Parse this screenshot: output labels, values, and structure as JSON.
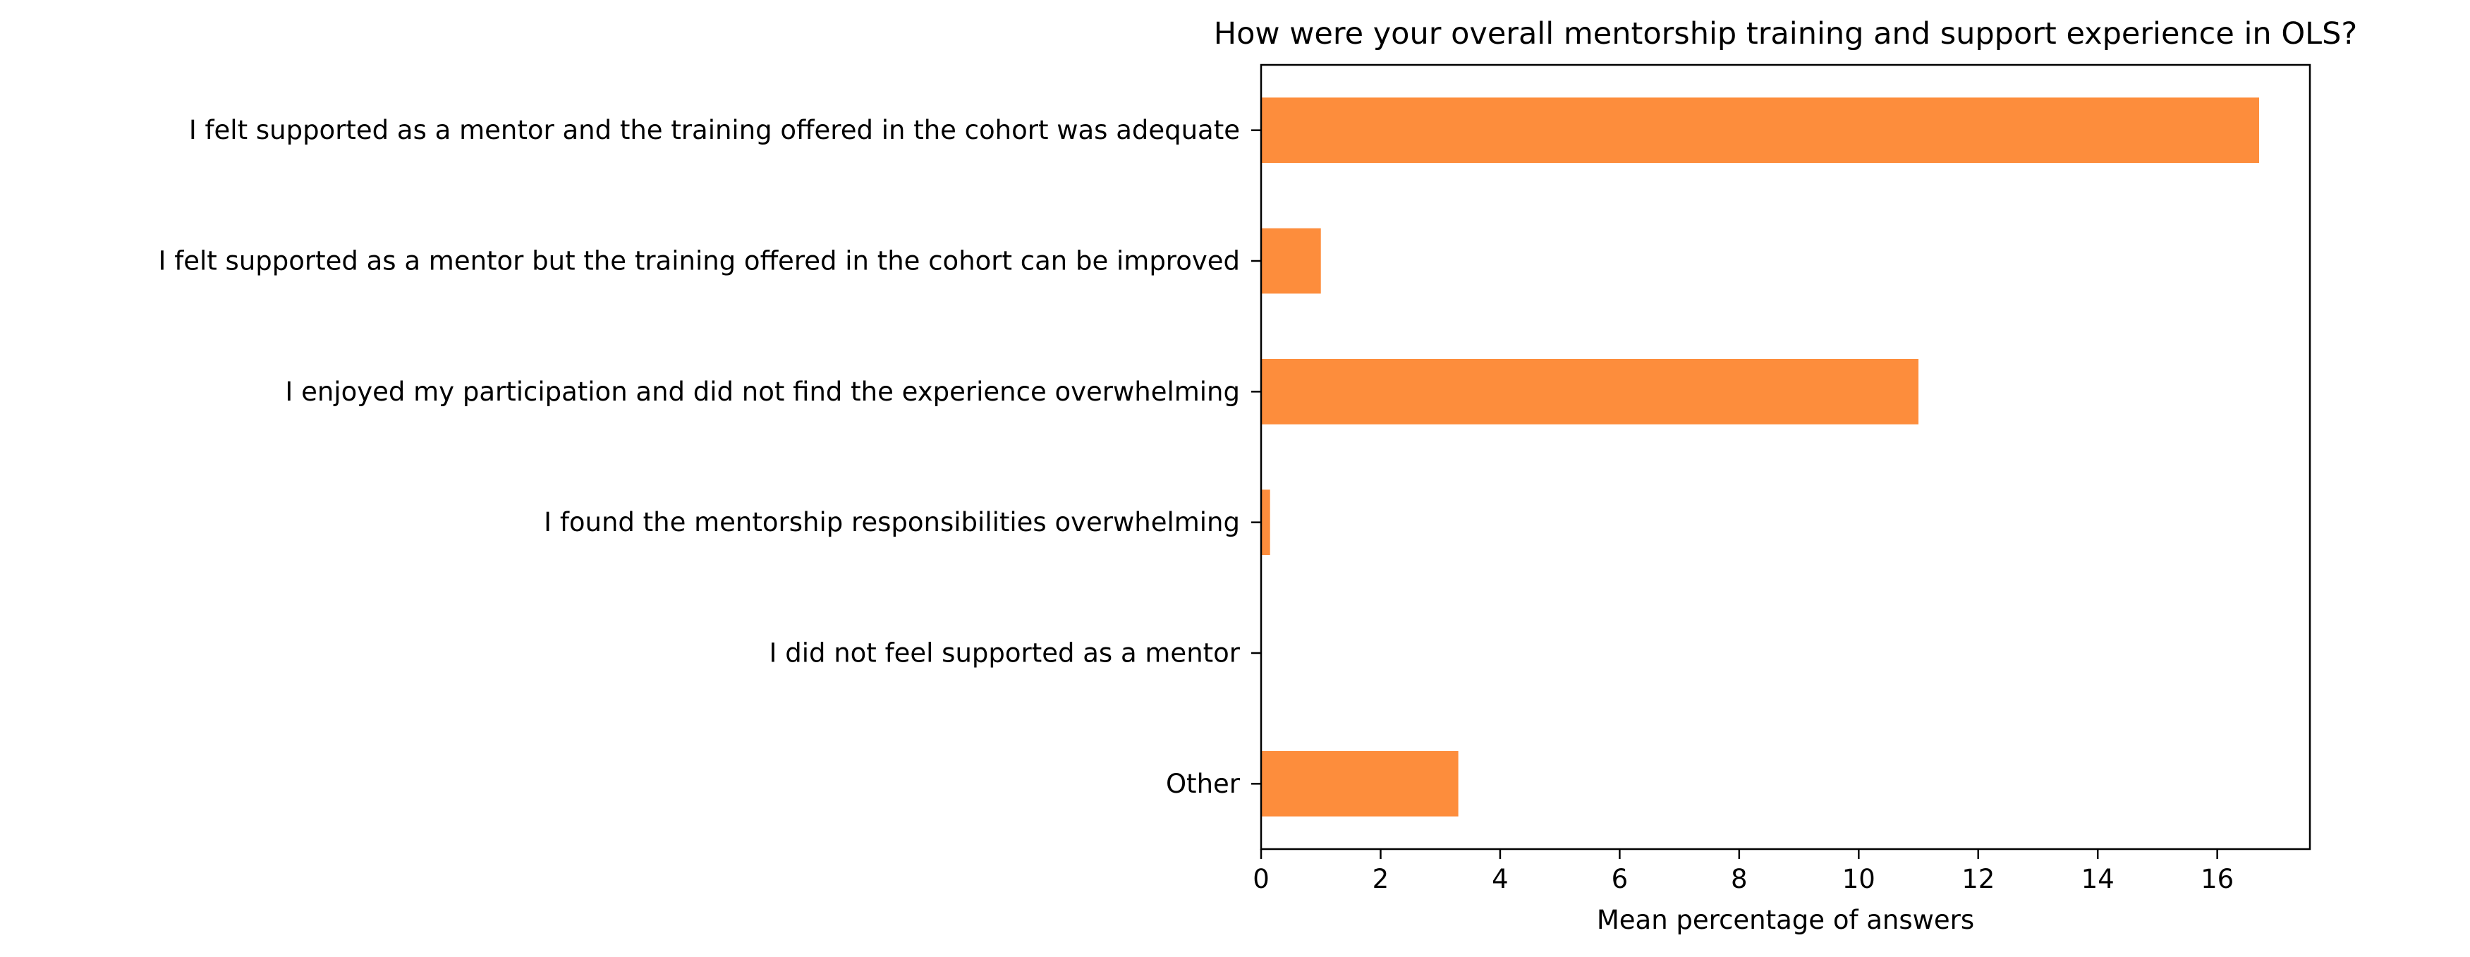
{
  "chart_data": {
    "type": "bar",
    "orientation": "horizontal",
    "title": "How were your overall mentorship training and support experience in OLS?",
    "xlabel": "Mean percentage of answers",
    "ylabel": "",
    "categories": [
      "I felt supported as a mentor and the training offered in the cohort was adequate",
      "I felt supported as a mentor but the training offered in the cohort can be improved",
      "I enjoyed my participation and did not find the experience overwhelming",
      "I found the mentorship responsibilities overwhelming",
      "I did not feel supported as a mentor",
      "Other"
    ],
    "values": [
      16.7,
      1.0,
      11.0,
      0.15,
      0.0,
      3.3
    ],
    "xlim": [
      0,
      17.55
    ],
    "xticks": [
      0,
      2,
      4,
      6,
      8,
      10,
      12,
      14,
      16
    ],
    "grid": false,
    "legend": "none",
    "bar_color": "#fd8d3c"
  }
}
